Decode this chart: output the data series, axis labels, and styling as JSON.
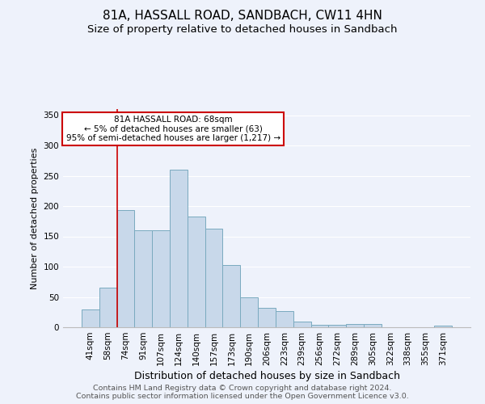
{
  "title": "81A, HASSALL ROAD, SANDBACH, CW11 4HN",
  "subtitle": "Size of property relative to detached houses in Sandbach",
  "xlabel": "Distribution of detached houses by size in Sandbach",
  "ylabel": "Number of detached properties",
  "categories": [
    "41sqm",
    "58sqm",
    "74sqm",
    "91sqm",
    "107sqm",
    "124sqm",
    "140sqm",
    "157sqm",
    "173sqm",
    "190sqm",
    "206sqm",
    "223sqm",
    "239sqm",
    "256sqm",
    "272sqm",
    "289sqm",
    "305sqm",
    "322sqm",
    "338sqm",
    "355sqm",
    "371sqm"
  ],
  "values": [
    30,
    65,
    193,
    160,
    160,
    260,
    183,
    163,
    103,
    50,
    32,
    27,
    10,
    4,
    4,
    5,
    5,
    0,
    0,
    0,
    3
  ],
  "bar_color": "#c8d8ea",
  "bar_edge_color": "#7aaabf",
  "vline_x": 1.5,
  "vline_color": "#cc0000",
  "annotation_text": "81A HASSALL ROAD: 68sqm\n← 5% of detached houses are smaller (63)\n95% of semi-detached houses are larger (1,217) →",
  "annotation_box_color": "white",
  "annotation_box_edge_color": "#cc0000",
  "ylim": [
    0,
    360
  ],
  "yticks": [
    0,
    50,
    100,
    150,
    200,
    250,
    300,
    350
  ],
  "footer_line1": "Contains HM Land Registry data © Crown copyright and database right 2024.",
  "footer_line2": "Contains public sector information licensed under the Open Government Licence v3.0.",
  "background_color": "#eef2fb",
  "grid_color": "#ffffff",
  "title_fontsize": 11,
  "subtitle_fontsize": 9.5,
  "xlabel_fontsize": 9,
  "ylabel_fontsize": 8,
  "tick_fontsize": 7.5,
  "footer_fontsize": 6.8
}
